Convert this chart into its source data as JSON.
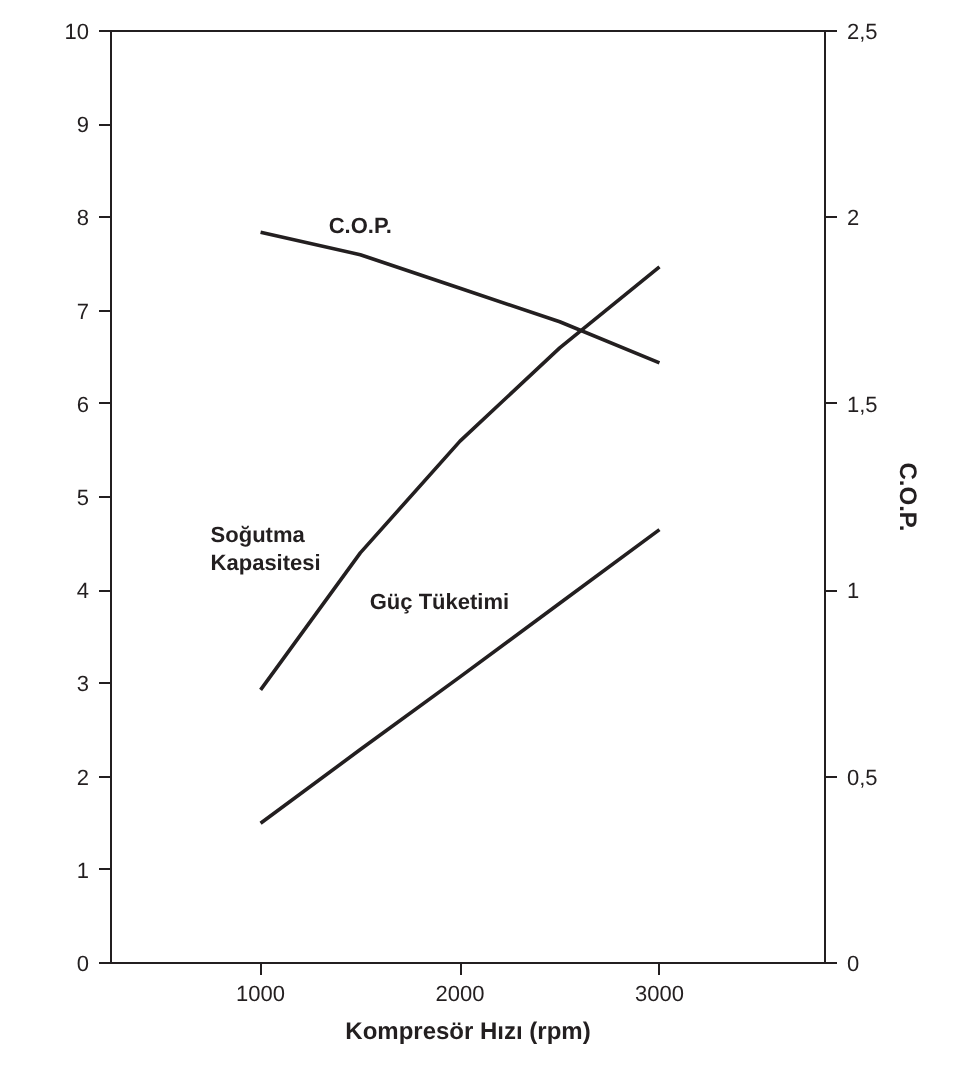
{
  "chart_data": {
    "type": "line",
    "xlabel": "Kompresör Hızı (rpm)",
    "y2label": "C.O.P.",
    "x": [
      1000,
      1500,
      2000,
      2500,
      3000
    ],
    "xlim": [
      250,
      3830
    ],
    "xticks": [
      1000,
      2000,
      3000
    ],
    "ylim": [
      0,
      10
    ],
    "yticks": [
      0,
      1,
      2,
      3,
      4,
      5,
      6,
      7,
      8,
      9,
      10
    ],
    "y2lim": [
      0,
      2.5
    ],
    "y2ticks": [
      {
        "value": 0,
        "label": "0"
      },
      {
        "value": 0.5,
        "label": "0,5"
      },
      {
        "value": 1,
        "label": "1"
      },
      {
        "value": 1.5,
        "label": "1,5"
      },
      {
        "value": 2,
        "label": "2"
      },
      {
        "value": 2.5,
        "label": "2,5"
      }
    ],
    "grid": false,
    "legend": false,
    "marker": "none",
    "line_style": "solid",
    "series": [
      {
        "name": "C.O.P.",
        "color": "#231f20",
        "axis": "y2",
        "values": [
          1.96,
          1.9,
          1.81,
          1.72,
          1.61
        ]
      },
      {
        "name": "Soğutma Kapasitesi",
        "color": "#231f20",
        "values": [
          2.93,
          4.4,
          5.6,
          6.6,
          7.47
        ]
      },
      {
        "name": "Güç Tüketimi",
        "color": "#231f20",
        "values": [
          1.5,
          2.29,
          3.07,
          3.86,
          4.65
        ]
      }
    ]
  }
}
